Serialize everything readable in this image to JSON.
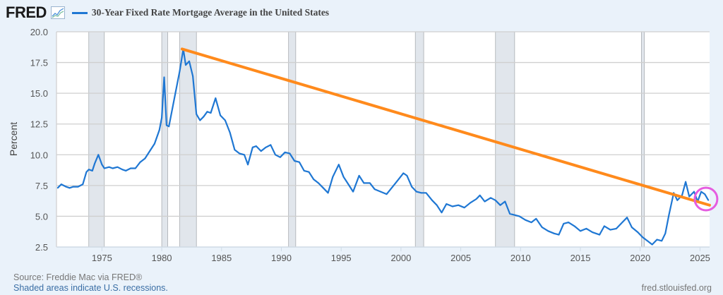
{
  "header": {
    "logo": "FRED",
    "logo_icon": "trend-chart-icon",
    "legend_color": "#1f77d3",
    "title": "30-Year Fixed Rate Mortgage Average in the United States"
  },
  "footer": {
    "source": "Source: Freddie Mac via FRED®",
    "recession_note": "Shaded areas indicate U.S. recessions.",
    "site": "fred.stlouisfed.org"
  },
  "chart_data": {
    "type": "line",
    "title": "30-Year Fixed Rate Mortgage Average in the United States",
    "xlabel": "",
    "ylabel": "Percent",
    "xlim": [
      1971.2,
      2025.8
    ],
    "ylim": [
      2.5,
      20.0
    ],
    "grid": true,
    "x_ticks": [
      1975,
      1980,
      1985,
      1990,
      1995,
      2000,
      2005,
      2010,
      2015,
      2020,
      2025
    ],
    "x_tick_labels": [
      "1975",
      "1980",
      "1985",
      "1990",
      "1995",
      "2000",
      "2005",
      "2010",
      "2015",
      "2020",
      "2025"
    ],
    "y_ticks": [
      2.5,
      5.0,
      7.5,
      10.0,
      12.5,
      15.0,
      17.5,
      20.0
    ],
    "y_tick_labels": [
      "2.5",
      "5.0",
      "7.5",
      "10.0",
      "12.5",
      "15.0",
      "17.5",
      "20.0"
    ],
    "recessions": [
      [
        1973.9,
        1975.2
      ],
      [
        1980.0,
        1980.5
      ],
      [
        1981.5,
        1982.9
      ],
      [
        1990.6,
        1991.2
      ],
      [
        2001.2,
        2001.9
      ],
      [
        2007.9,
        2009.5
      ],
      [
        2020.1,
        2020.35
      ]
    ],
    "recession_color": "#e1e6ec",
    "series": [
      {
        "name": "30-Year Fixed Rate Mortgage Average in the United States",
        "color": "#1f77d3",
        "x": [
          1971.3,
          1971.6,
          1972.0,
          1972.3,
          1972.6,
          1973.0,
          1973.4,
          1973.7,
          1973.9,
          1974.2,
          1974.4,
          1974.7,
          1975.0,
          1975.2,
          1975.6,
          1975.9,
          1976.3,
          1976.7,
          1977.0,
          1977.4,
          1977.8,
          1978.2,
          1978.6,
          1979.0,
          1979.4,
          1979.8,
          1980.0,
          1980.2,
          1980.4,
          1980.6,
          1980.9,
          1981.2,
          1981.5,
          1981.8,
          1982.0,
          1982.3,
          1982.6,
          1982.9,
          1983.2,
          1983.5,
          1983.8,
          1984.1,
          1984.5,
          1984.9,
          1985.3,
          1985.7,
          1986.1,
          1986.5,
          1986.9,
          1987.2,
          1987.6,
          1987.9,
          1988.3,
          1988.7,
          1989.1,
          1989.5,
          1989.9,
          1990.3,
          1990.7,
          1991.1,
          1991.5,
          1991.9,
          1992.3,
          1992.7,
          1993.1,
          1993.5,
          1993.9,
          1994.3,
          1994.8,
          1995.2,
          1995.6,
          1996.0,
          1996.5,
          1996.9,
          1997.4,
          1997.8,
          1998.3,
          1998.8,
          1999.3,
          1999.8,
          2000.2,
          2000.5,
          2000.9,
          2001.3,
          2001.7,
          2002.1,
          2002.6,
          2003.0,
          2003.4,
          2003.8,
          2004.3,
          2004.8,
          2005.3,
          2005.8,
          2006.3,
          2006.6,
          2007.0,
          2007.5,
          2007.9,
          2008.3,
          2008.7,
          2009.1,
          2009.5,
          2009.9,
          2010.4,
          2010.9,
          2011.3,
          2011.8,
          2012.3,
          2012.8,
          2013.2,
          2013.6,
          2014.0,
          2014.5,
          2015.0,
          2015.5,
          2016.0,
          2016.6,
          2017.0,
          2017.5,
          2018.0,
          2018.5,
          2018.9,
          2019.3,
          2019.8,
          2020.2,
          2020.6,
          2021.0,
          2021.4,
          2021.8,
          2022.1,
          2022.4,
          2022.8,
          2023.1,
          2023.5,
          2023.8,
          2024.1,
          2024.5,
          2024.8,
          2025.1,
          2025.4,
          2025.7
        ],
        "values": [
          7.3,
          7.6,
          7.4,
          7.3,
          7.4,
          7.4,
          7.6,
          8.6,
          8.8,
          8.7,
          9.3,
          10.0,
          9.2,
          8.9,
          9.0,
          8.9,
          9.0,
          8.8,
          8.7,
          8.9,
          8.9,
          9.4,
          9.7,
          10.3,
          10.9,
          12.0,
          13.0,
          16.3,
          12.4,
          12.3,
          13.8,
          15.3,
          16.8,
          18.6,
          17.3,
          17.6,
          16.4,
          13.3,
          12.8,
          13.1,
          13.5,
          13.4,
          14.6,
          13.2,
          12.8,
          11.8,
          10.4,
          10.1,
          10.0,
          9.2,
          10.6,
          10.7,
          10.3,
          10.6,
          10.8,
          10.0,
          9.8,
          10.2,
          10.1,
          9.5,
          9.4,
          8.7,
          8.6,
          8.0,
          7.7,
          7.3,
          6.9,
          8.2,
          9.2,
          8.2,
          7.6,
          7.0,
          8.3,
          7.7,
          7.7,
          7.2,
          7.0,
          6.8,
          7.4,
          8.0,
          8.5,
          8.3,
          7.4,
          7.0,
          6.9,
          6.9,
          6.3,
          5.9,
          5.3,
          6.0,
          5.8,
          5.9,
          5.7,
          6.1,
          6.4,
          6.7,
          6.2,
          6.5,
          6.3,
          5.9,
          6.2,
          5.2,
          5.1,
          5.0,
          4.7,
          4.5,
          4.8,
          4.1,
          3.8,
          3.6,
          3.5,
          4.4,
          4.5,
          4.2,
          3.8,
          4.0,
          3.7,
          3.5,
          4.2,
          3.9,
          4.0,
          4.5,
          4.9,
          4.1,
          3.7,
          3.3,
          3.0,
          2.7,
          3.1,
          3.0,
          3.6,
          5.1,
          6.9,
          6.3,
          6.7,
          7.8,
          6.6,
          7.0,
          6.2,
          7.0,
          6.8,
          6.3
        ]
      }
    ],
    "annotations": [
      {
        "type": "trend-line",
        "color": "#ff8a1c",
        "from": [
          1981.7,
          18.6
        ],
        "to": [
          2025.8,
          5.9
        ]
      },
      {
        "type": "circle",
        "color": "#e55ce0",
        "center": [
          2025.5,
          6.4
        ]
      }
    ]
  }
}
